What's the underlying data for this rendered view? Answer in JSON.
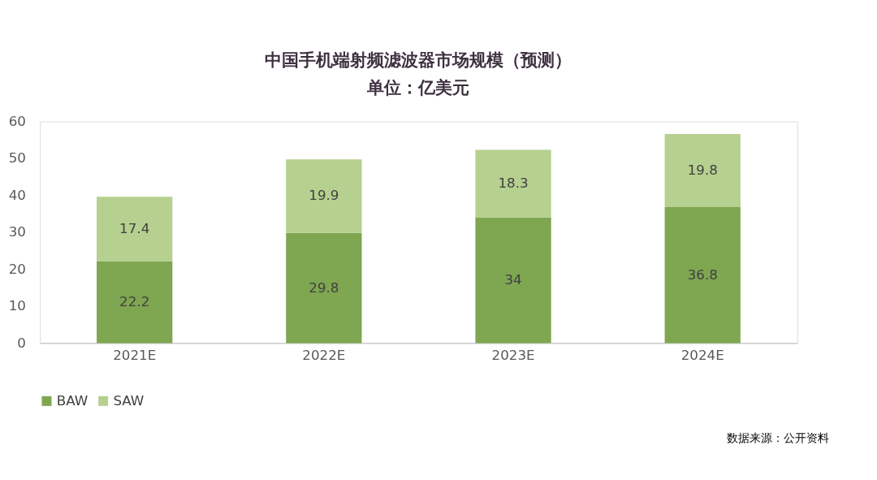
{
  "chart_data": {
    "type": "bar",
    "title": "中国手机端射频滤波器市场规模（预测）",
    "subtitle": "单位：亿美元",
    "categories": [
      "2021E",
      "2022E",
      "2023E",
      "2024E"
    ],
    "series": [
      {
        "name": "BAW",
        "color": "#7fa650",
        "values": [
          22.2,
          29.8,
          34,
          36.8
        ]
      },
      {
        "name": "SAW",
        "color": "#b6d08f",
        "values": [
          17.4,
          19.9,
          18.3,
          19.8
        ]
      }
    ],
    "stacked": true,
    "data_labels": true,
    "ylim": [
      0,
      60
    ],
    "yticks": [
      0,
      10,
      20,
      30,
      40,
      50,
      60
    ],
    "grid": false,
    "legend": "bottom",
    "annotations": [
      "数据来源：公开资料"
    ]
  }
}
